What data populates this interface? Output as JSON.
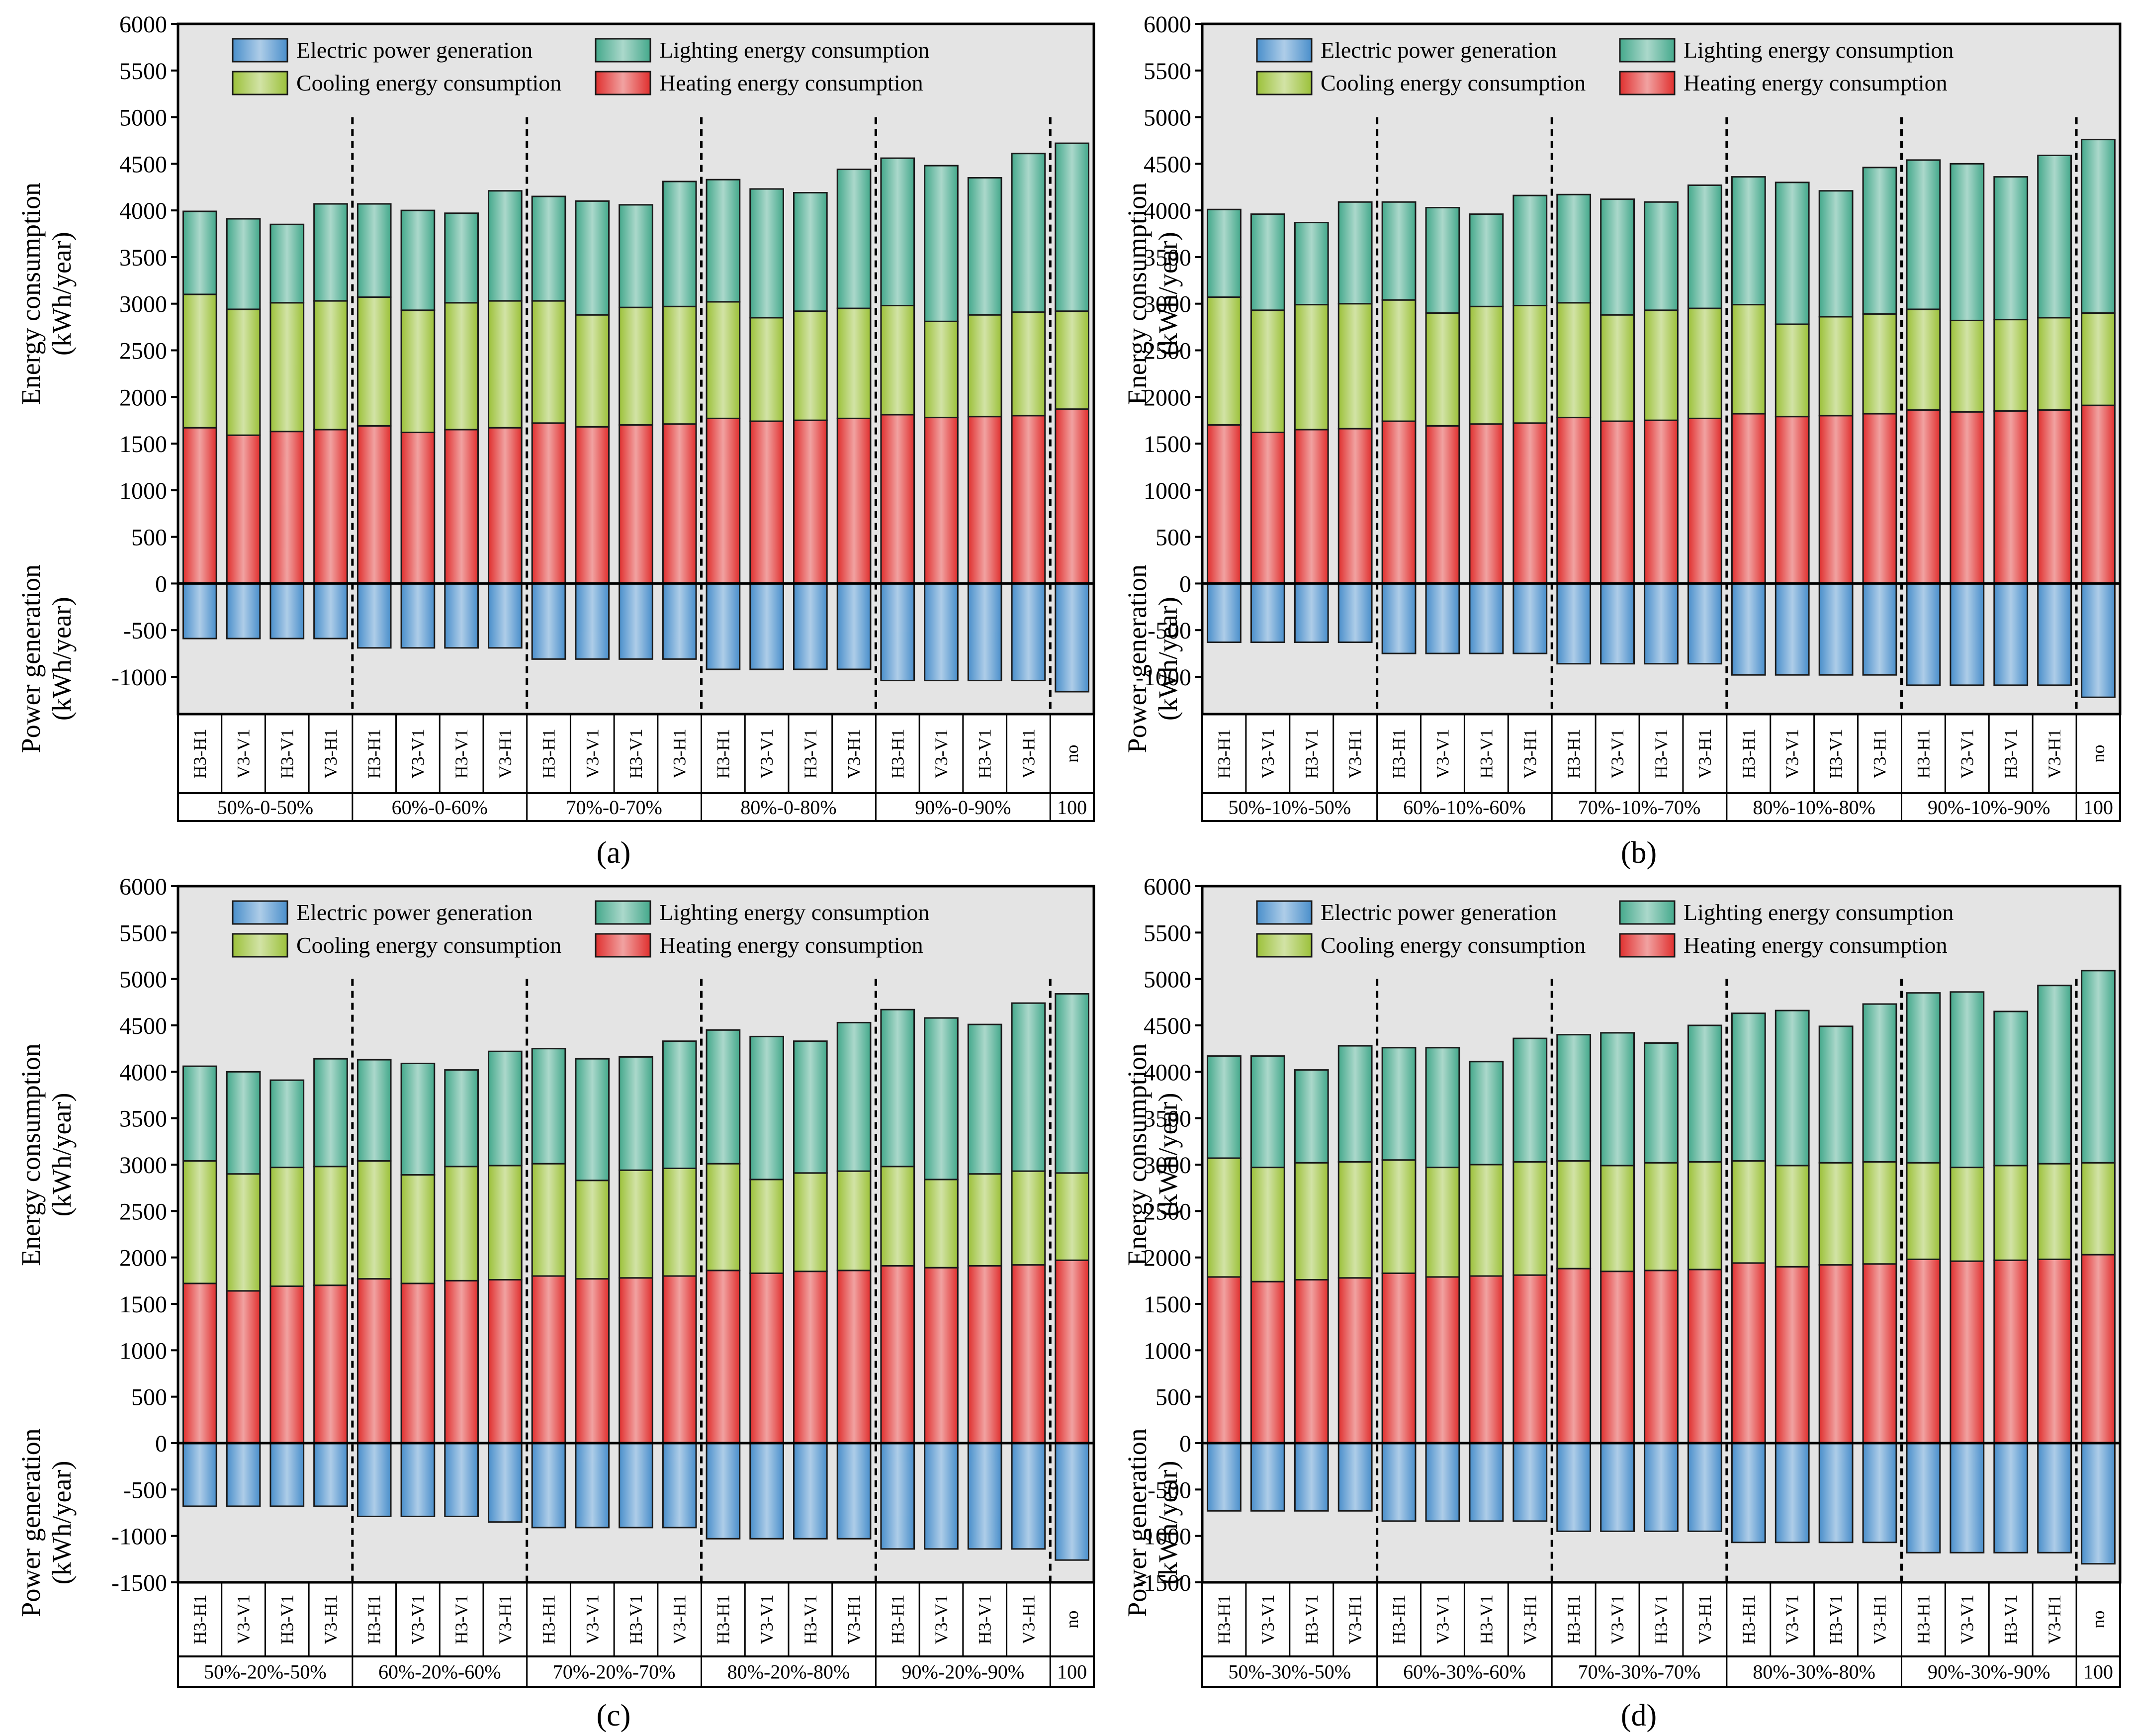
{
  "legend": {
    "labels": [
      "Electric power generation",
      "Lighting energy consumption",
      "Cooling energy consumption",
      "Heating energy consumption"
    ]
  },
  "colors": {
    "electric": "#4a8fcb",
    "lighting": "#45a98c",
    "cooling": "#9cc13a",
    "heating": "#e0302f",
    "plot_bg": "#e4e4e4"
  },
  "axis": {
    "ylabel_top_line1": "Energy consumption",
    "ylabel_top_line2": "(kWh/year)",
    "ylabel_bottom_line1": "Power generation",
    "ylabel_bottom_line2": "(kWh/year)"
  },
  "chart_data": [
    {
      "type": "bar",
      "stacked": true,
      "panel_label": "(a)",
      "ylim": [
        -1400,
        6000
      ],
      "yticks": [
        -1000,
        -500,
        0,
        500,
        1000,
        1500,
        2000,
        2500,
        3000,
        3500,
        4000,
        4500,
        5000,
        5500,
        6000
      ],
      "categories": [
        "H3-H1",
        "V3-V1",
        "H3-V1",
        "V3-H1",
        "H3-H1",
        "V3-V1",
        "H3-V1",
        "V3-H1",
        "H3-H1",
        "V3-V1",
        "H3-V1",
        "V3-H1",
        "H3-H1",
        "V3-V1",
        "H3-V1",
        "V3-H1",
        "H3-H1",
        "V3-V1",
        "H3-V1",
        "V3-H1",
        "no"
      ],
      "groups": [
        {
          "label": "50%-0-50%",
          "size": 4
        },
        {
          "label": "60%-0-60%",
          "size": 4
        },
        {
          "label": "70%-0-70%",
          "size": 4
        },
        {
          "label": "80%-0-80%",
          "size": 4
        },
        {
          "label": "90%-0-90%",
          "size": 4
        },
        {
          "label": "100",
          "size": 1
        }
      ],
      "series": [
        {
          "name": "Heating energy consumption",
          "values": [
            1670,
            1590,
            1630,
            1650,
            1690,
            1620,
            1650,
            1670,
            1720,
            1680,
            1700,
            1710,
            1770,
            1740,
            1750,
            1770,
            1810,
            1780,
            1790,
            1800,
            1870
          ]
        },
        {
          "name": "Cooling energy consumption",
          "values": [
            1430,
            1350,
            1380,
            1380,
            1380,
            1310,
            1360,
            1360,
            1310,
            1200,
            1260,
            1260,
            1250,
            1110,
            1170,
            1180,
            1170,
            1030,
            1090,
            1110,
            1050
          ]
        },
        {
          "name": "Lighting energy consumption",
          "values": [
            890,
            970,
            840,
            1040,
            1000,
            1070,
            960,
            1180,
            1120,
            1220,
            1100,
            1340,
            1310,
            1380,
            1270,
            1490,
            1580,
            1670,
            1470,
            1700,
            1800
          ]
        },
        {
          "name": "Electric power generation",
          "values": [
            -590,
            -590,
            -590,
            -590,
            -690,
            -690,
            -690,
            -690,
            -810,
            -810,
            -810,
            -810,
            -920,
            -920,
            -920,
            -920,
            -1040,
            -1040,
            -1040,
            -1040,
            -1160
          ]
        }
      ]
    },
    {
      "type": "bar",
      "stacked": true,
      "panel_label": "(b)",
      "ylim": [
        -1400,
        6000
      ],
      "yticks": [
        -1000,
        -500,
        0,
        500,
        1000,
        1500,
        2000,
        2500,
        3000,
        3500,
        4000,
        4500,
        5000,
        5500,
        6000
      ],
      "categories": [
        "H3-H1",
        "V3-V1",
        "H3-V1",
        "V3-H1",
        "H3-H1",
        "V3-V1",
        "H3-V1",
        "V3-H1",
        "H3-H1",
        "V3-V1",
        "H3-V1",
        "V3-H1",
        "H3-H1",
        "V3-V1",
        "H3-V1",
        "V3-H1",
        "H3-H1",
        "V3-V1",
        "H3-V1",
        "V3-H1",
        "no"
      ],
      "groups": [
        {
          "label": "50%-10%-50%",
          "size": 4
        },
        {
          "label": "60%-10%-60%",
          "size": 4
        },
        {
          "label": "70%-10%-70%",
          "size": 4
        },
        {
          "label": "80%-10%-80%",
          "size": 4
        },
        {
          "label": "90%-10%-90%",
          "size": 4
        },
        {
          "label": "100",
          "size": 1
        }
      ],
      "series": [
        {
          "name": "Heating energy consumption",
          "values": [
            1700,
            1620,
            1650,
            1660,
            1740,
            1690,
            1710,
            1720,
            1780,
            1740,
            1750,
            1770,
            1820,
            1790,
            1800,
            1820,
            1860,
            1840,
            1850,
            1860,
            1910
          ]
        },
        {
          "name": "Cooling energy consumption",
          "values": [
            1370,
            1310,
            1340,
            1340,
            1300,
            1210,
            1260,
            1260,
            1230,
            1140,
            1180,
            1180,
            1170,
            990,
            1060,
            1070,
            1080,
            980,
            980,
            990,
            990
          ]
        },
        {
          "name": "Lighting energy consumption",
          "values": [
            940,
            1030,
            880,
            1090,
            1050,
            1130,
            990,
            1180,
            1160,
            1240,
            1160,
            1320,
            1370,
            1520,
            1350,
            1570,
            1600,
            1680,
            1530,
            1740,
            1860
          ]
        },
        {
          "name": "Electric power generation",
          "values": [
            -630,
            -630,
            -630,
            -630,
            -750,
            -750,
            -750,
            -750,
            -860,
            -860,
            -860,
            -860,
            -980,
            -980,
            -980,
            -980,
            -1090,
            -1090,
            -1090,
            -1090,
            -1220
          ]
        }
      ]
    },
    {
      "type": "bar",
      "stacked": true,
      "panel_label": "(c)",
      "ylim": [
        -1500,
        6000
      ],
      "yticks": [
        -1500,
        -1000,
        -500,
        0,
        500,
        1000,
        1500,
        2000,
        2500,
        3000,
        3500,
        4000,
        4500,
        5000,
        5500,
        6000
      ],
      "categories": [
        "H3-H1",
        "V3-V1",
        "H3-V1",
        "V3-H1",
        "H3-H1",
        "V3-V1",
        "H3-V1",
        "V3-H1",
        "H3-H1",
        "V3-V1",
        "H3-V1",
        "V3-H1",
        "H3-H1",
        "V3-V1",
        "H3-V1",
        "V3-H1",
        "H3-H1",
        "V3-V1",
        "H3-V1",
        "V3-H1",
        "no"
      ],
      "groups": [
        {
          "label": "50%-20%-50%",
          "size": 4
        },
        {
          "label": "60%-20%-60%",
          "size": 4
        },
        {
          "label": "70%-20%-70%",
          "size": 4
        },
        {
          "label": "80%-20%-80%",
          "size": 4
        },
        {
          "label": "90%-20%-90%",
          "size": 4
        },
        {
          "label": "100",
          "size": 1
        }
      ],
      "series": [
        {
          "name": "Heating energy consumption",
          "values": [
            1720,
            1640,
            1690,
            1700,
            1770,
            1720,
            1750,
            1760,
            1800,
            1770,
            1780,
            1800,
            1860,
            1830,
            1850,
            1860,
            1910,
            1890,
            1910,
            1920,
            1970
          ]
        },
        {
          "name": "Cooling energy consumption",
          "values": [
            1320,
            1260,
            1280,
            1280,
            1270,
            1170,
            1230,
            1230,
            1210,
            1060,
            1160,
            1160,
            1150,
            1010,
            1060,
            1070,
            1070,
            950,
            990,
            1010,
            940
          ]
        },
        {
          "name": "Lighting energy consumption",
          "values": [
            1020,
            1100,
            940,
            1160,
            1090,
            1200,
            1040,
            1230,
            1240,
            1310,
            1220,
            1370,
            1440,
            1540,
            1420,
            1600,
            1690,
            1740,
            1610,
            1810,
            1930
          ]
        },
        {
          "name": "Electric power generation",
          "values": [
            -680,
            -680,
            -680,
            -680,
            -790,
            -790,
            -790,
            -850,
            -910,
            -910,
            -910,
            -910,
            -1030,
            -1030,
            -1030,
            -1030,
            -1140,
            -1140,
            -1140,
            -1140,
            -1260
          ]
        }
      ]
    },
    {
      "type": "bar",
      "stacked": true,
      "panel_label": "(d)",
      "ylim": [
        -1500,
        6000
      ],
      "yticks": [
        -1500,
        -1000,
        -500,
        0,
        500,
        1000,
        1500,
        2000,
        2500,
        3000,
        3500,
        4000,
        4500,
        5000,
        5500,
        6000
      ],
      "categories": [
        "H3-H1",
        "V3-V1",
        "H3-V1",
        "V3-H1",
        "H3-H1",
        "V3-V1",
        "H3-V1",
        "V3-H1",
        "H3-H1",
        "V3-V1",
        "H3-V1",
        "V3-H1",
        "H3-H1",
        "V3-V1",
        "H3-V1",
        "V3-H1",
        "H3-H1",
        "V3-V1",
        "H3-V1",
        "V3-H1",
        "no"
      ],
      "groups": [
        {
          "label": "50%-30%-50%",
          "size": 4
        },
        {
          "label": "60%-30%-60%",
          "size": 4
        },
        {
          "label": "70%-30%-70%",
          "size": 4
        },
        {
          "label": "80%-30%-80%",
          "size": 4
        },
        {
          "label": "90%-30%-90%",
          "size": 4
        },
        {
          "label": "100",
          "size": 1
        }
      ],
      "series": [
        {
          "name": "Heating energy consumption",
          "values": [
            1790,
            1740,
            1760,
            1780,
            1830,
            1790,
            1800,
            1810,
            1880,
            1850,
            1860,
            1870,
            1940,
            1900,
            1920,
            1930,
            1980,
            1960,
            1970,
            1980,
            2030
          ]
        },
        {
          "name": "Cooling energy consumption",
          "values": [
            1280,
            1230,
            1260,
            1250,
            1220,
            1180,
            1200,
            1220,
            1160,
            1140,
            1160,
            1160,
            1100,
            1090,
            1100,
            1100,
            1040,
            1010,
            1020,
            1030,
            990
          ]
        },
        {
          "name": "Lighting energy consumption",
          "values": [
            1100,
            1200,
            1000,
            1250,
            1210,
            1290,
            1110,
            1330,
            1360,
            1430,
            1290,
            1470,
            1590,
            1670,
            1470,
            1700,
            1830,
            1890,
            1660,
            1920,
            2070
          ]
        },
        {
          "name": "Electric power generation",
          "values": [
            -730,
            -730,
            -730,
            -730,
            -840,
            -840,
            -840,
            -840,
            -950,
            -950,
            -950,
            -950,
            -1070,
            -1070,
            -1070,
            -1070,
            -1180,
            -1180,
            -1180,
            -1180,
            -1300
          ]
        }
      ]
    }
  ]
}
